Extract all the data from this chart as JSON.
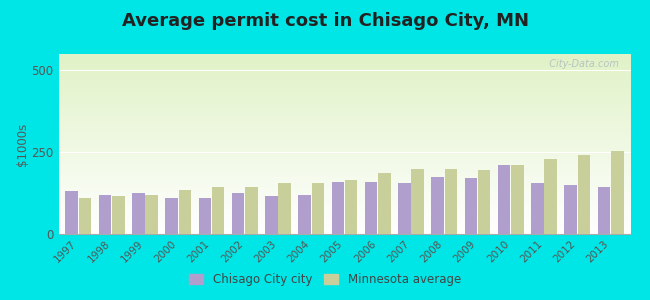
{
  "title": "Average permit cost in Chisago City, MN",
  "years": [
    1997,
    1998,
    1999,
    2000,
    2001,
    2002,
    2003,
    2004,
    2005,
    2006,
    2007,
    2008,
    2009,
    2010,
    2011,
    2012,
    2013
  ],
  "city_values": [
    130,
    120,
    125,
    110,
    110,
    125,
    115,
    120,
    160,
    160,
    155,
    175,
    170,
    210,
    155,
    150,
    145
  ],
  "mn_values": [
    110,
    115,
    120,
    135,
    145,
    145,
    155,
    155,
    165,
    185,
    200,
    200,
    195,
    210,
    230,
    240,
    255
  ],
  "city_color": "#b09fcc",
  "mn_color": "#c8cf9a",
  "ylim": [
    0,
    550
  ],
  "yticks": [
    0,
    250,
    500
  ],
  "ylabel": "$1000s",
  "outer_background": "#00e5e5",
  "title_fontsize": 13,
  "legend_labels": [
    "Chisago City city",
    "Minnesota average"
  ],
  "watermark": "  City-Data.com"
}
